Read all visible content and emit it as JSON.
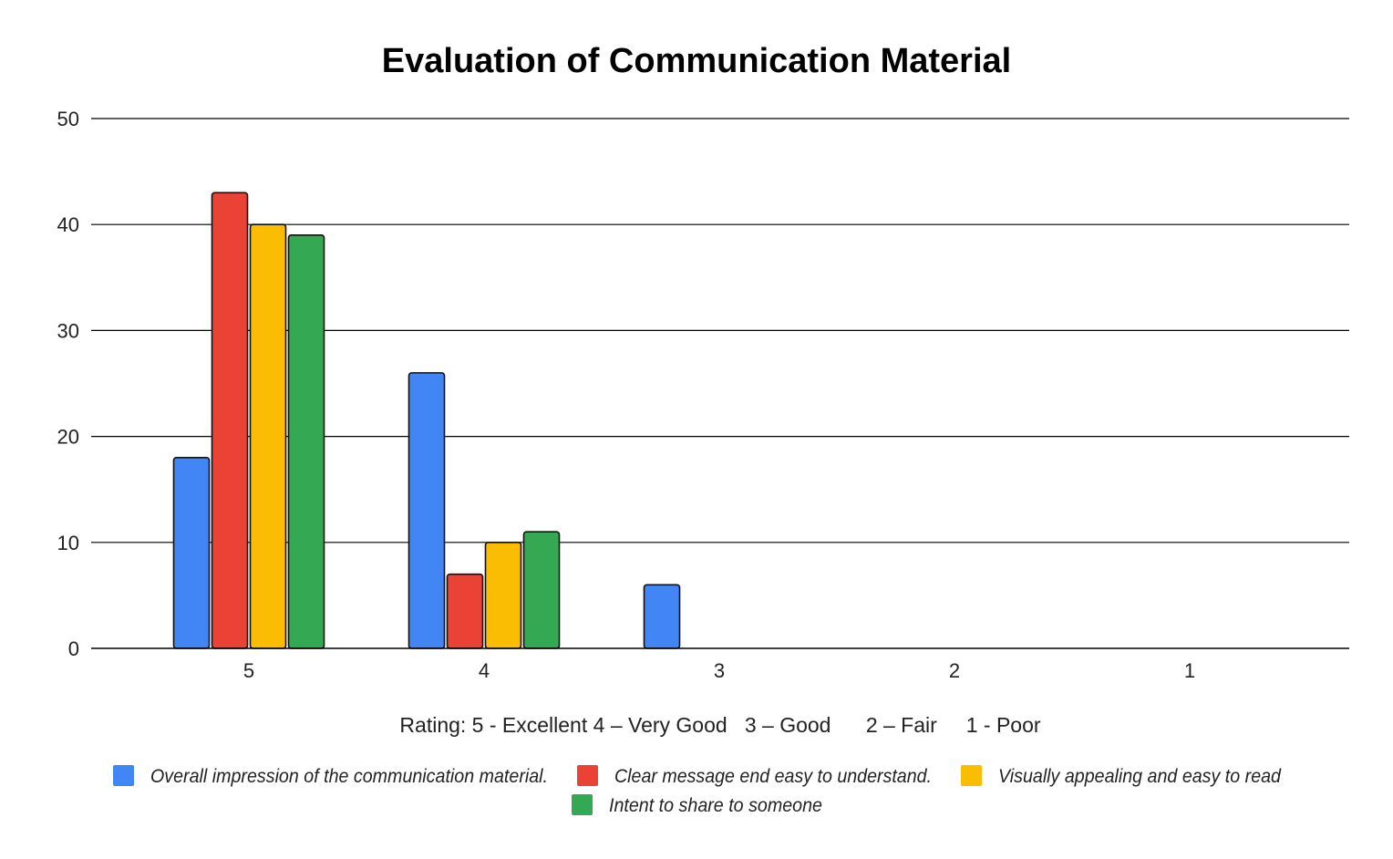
{
  "chart_data": {
    "type": "bar",
    "title": "Evaluation of Communication Material",
    "xlabel": "Rating: 5 - Excellent 4 – Very Good   3 – Good      2 – Fair     1 - Poor",
    "ylabel": "",
    "categories": [
      "5",
      "4",
      "3",
      "2",
      "1"
    ],
    "ylim": [
      0,
      50
    ],
    "yticks": [
      0,
      10,
      20,
      30,
      40,
      50
    ],
    "grid": true,
    "legend_position": "bottom",
    "series": [
      {
        "name": "Overall impression of the communication material.",
        "color": "#4285F4",
        "values": [
          18,
          26,
          6,
          0,
          0
        ]
      },
      {
        "name": "Clear message end easy to understand.",
        "color": "#EA4335",
        "values": [
          43,
          7,
          0,
          0,
          0
        ]
      },
      {
        "name": "Visually appealing and easy to read",
        "color": "#FBBC04",
        "values": [
          40,
          10,
          0,
          0,
          0
        ]
      },
      {
        "name": "Intent to share to someone",
        "color": "#34A853",
        "values": [
          39,
          11,
          0,
          0,
          0
        ]
      }
    ]
  }
}
